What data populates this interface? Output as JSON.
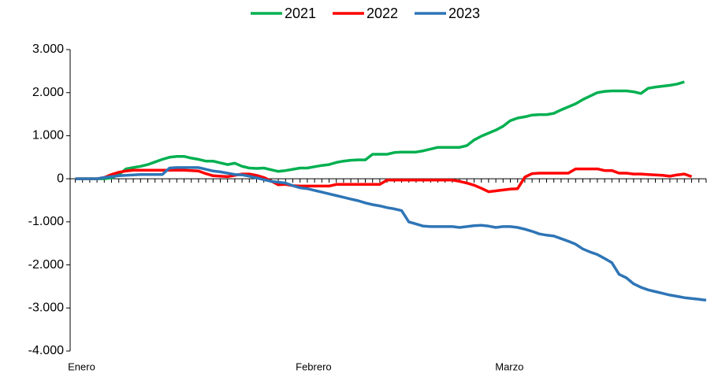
{
  "chart_data": {
    "type": "line",
    "categories": [
      "Enero",
      null,
      null,
      null,
      null,
      null,
      null,
      null,
      null,
      null,
      null,
      null,
      null,
      null,
      null,
      null,
      null,
      null,
      null,
      null,
      null,
      null,
      null,
      null,
      null,
      null,
      null,
      null,
      null,
      null,
      null,
      null,
      "Febrero",
      null,
      null,
      null,
      null,
      null,
      null,
      null,
      null,
      null,
      null,
      null,
      null,
      null,
      null,
      null,
      null,
      null,
      null,
      null,
      null,
      null,
      null,
      null,
      null,
      null,
      null,
      "Marzo",
      null,
      null,
      null,
      null,
      null,
      null,
      null,
      null,
      null,
      null,
      null,
      null,
      null,
      null,
      null,
      null,
      null,
      null,
      null,
      null,
      null,
      null,
      null,
      null,
      null,
      null,
      null,
      null
    ],
    "series": [
      {
        "name": "2021",
        "color": "#00b050",
        "values": [
          0,
          0,
          0,
          0,
          0,
          20,
          100,
          230,
          260,
          290,
          330,
          390,
          450,
          500,
          520,
          520,
          480,
          450,
          410,
          410,
          370,
          330,
          360,
          290,
          250,
          240,
          250,
          210,
          170,
          190,
          220,
          250,
          250,
          280,
          310,
          330,
          380,
          410,
          430,
          440,
          440,
          570,
          570,
          570,
          610,
          620,
          620,
          620,
          650,
          690,
          730,
          730,
          730,
          730,
          770,
          900,
          990,
          1060,
          1130,
          1220,
          1350,
          1410,
          1440,
          1480,
          1490,
          1490,
          1520,
          1600,
          1670,
          1740,
          1840,
          1920,
          2000,
          2030,
          2040,
          2040,
          2040,
          2020,
          1980,
          2100,
          2130,
          2150,
          2170,
          2200,
          2250,
          null,
          null,
          null
        ]
      },
      {
        "name": "2022",
        "color": "#ff0000",
        "values": [
          0,
          0,
          0,
          0,
          30,
          100,
          150,
          180,
          200,
          200,
          200,
          200,
          200,
          200,
          200,
          200,
          190,
          180,
          120,
          70,
          60,
          50,
          80,
          110,
          110,
          80,
          30,
          -50,
          -140,
          -130,
          -160,
          -170,
          -170,
          -170,
          -170,
          -170,
          -130,
          -130,
          -130,
          -130,
          -130,
          -130,
          -130,
          -30,
          -30,
          -30,
          -30,
          -30,
          -30,
          -30,
          -30,
          -30,
          -30,
          -60,
          -100,
          -150,
          -220,
          -300,
          -280,
          -260,
          -240,
          -230,
          40,
          120,
          130,
          130,
          130,
          130,
          130,
          230,
          230,
          230,
          230,
          190,
          190,
          130,
          130,
          110,
          110,
          100,
          90,
          80,
          60,
          90,
          110,
          50,
          null,
          null
        ]
      },
      {
        "name": "2023",
        "color": "#2e75b6",
        "values": [
          0,
          0,
          0,
          0,
          30,
          50,
          70,
          80,
          90,
          100,
          100,
          100,
          100,
          250,
          260,
          260,
          260,
          260,
          220,
          180,
          160,
          130,
          100,
          90,
          60,
          20,
          -20,
          -60,
          -80,
          -100,
          -160,
          -210,
          -230,
          -270,
          -310,
          -350,
          -390,
          -430,
          -470,
          -510,
          -560,
          -600,
          -630,
          -670,
          -700,
          -740,
          -1000,
          -1050,
          -1100,
          -1110,
          -1110,
          -1110,
          -1110,
          -1130,
          -1110,
          -1090,
          -1080,
          -1100,
          -1130,
          -1110,
          -1110,
          -1130,
          -1170,
          -1220,
          -1280,
          -1310,
          -1330,
          -1390,
          -1450,
          -1520,
          -1630,
          -1700,
          -1760,
          -1850,
          -1950,
          -2220,
          -2300,
          -2440,
          -2520,
          -2580,
          -2620,
          -2660,
          -2700,
          -2730,
          -2760,
          -2780,
          -2800,
          -2820
        ]
      }
    ],
    "ylim": [
      -4000,
      3000
    ],
    "yticks": [
      {
        "value": -4000,
        "label": "-4.000"
      },
      {
        "value": -3000,
        "label": "-3.000"
      },
      {
        "value": -2000,
        "label": "-2.000"
      },
      {
        "value": -1000,
        "label": "-1.000"
      },
      0,
      {
        "value": 1000,
        "label": "1.000"
      },
      {
        "value": 2000,
        "label": "2.000"
      },
      {
        "value": 3000,
        "label": "3.000"
      }
    ],
    "grid": false,
    "legend": "top"
  }
}
